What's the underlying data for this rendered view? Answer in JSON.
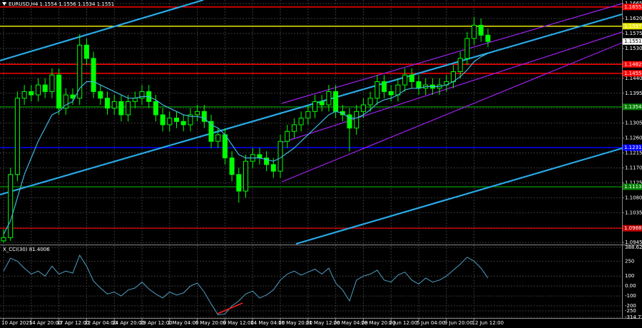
{
  "chart_data": [
    {
      "type": "candlestick",
      "title": "EURUSD,H4  1.1554 1.1556 1.1534 1.1551",
      "categories": [
        "10 Apr 2025",
        null,
        null,
        null,
        "14 Apr 20:00",
        null,
        null,
        null,
        "17 Apr 12:00",
        null,
        null,
        null,
        "22 Apr 04:00",
        null,
        null,
        null,
        "24 Apr 20:00",
        null,
        null,
        null,
        "29 Apr 12:00",
        null,
        null,
        null,
        "2 May 04:00",
        null,
        null,
        null,
        "6 May 20:00",
        null,
        null,
        null,
        "9 May 12:00",
        null,
        null,
        null,
        "14 May 04:00",
        null,
        null,
        null,
        "16 May 20:00",
        null,
        null,
        null,
        "21 May 12:00",
        null,
        null,
        null,
        "26 May 04:00",
        null,
        null,
        null,
        "28 May 20:00",
        null,
        null,
        null,
        "2 Jun 12:00",
        null,
        null,
        null,
        "5 Jun 04:00",
        null,
        null,
        null,
        "9 Jun 20:00",
        null,
        null,
        null,
        "12 Jun 12:00",
        null,
        null
      ],
      "open": [
        1.095,
        1.096,
        1.115,
        1.138,
        1.14,
        1.139,
        1.142,
        1.14,
        1.145,
        1.135,
        1.139,
        1.138,
        1.154,
        1.15,
        1.14,
        1.138,
        1.135,
        1.137,
        1.133,
        1.137,
        1.138,
        1.14,
        1.137,
        1.133,
        1.13,
        1.132,
        1.131,
        1.13,
        1.133,
        1.134,
        1.131,
        1.125,
        1.127,
        1.12,
        1.115,
        1.11,
        1.119,
        1.121,
        1.12,
        1.118,
        1.116,
        1.125,
        1.128,
        1.13,
        1.132,
        1.134,
        1.137,
        1.136,
        1.14,
        1.134,
        1.133,
        1.129,
        1.134,
        1.136,
        1.138,
        1.143,
        1.14,
        1.139,
        1.142,
        1.145,
        1.143,
        1.141,
        1.142,
        1.141,
        1.142,
        1.143,
        1.146,
        1.15,
        1.156,
        1.16,
        1.157
      ],
      "high": [
        1.0985,
        1.117,
        1.14,
        1.142,
        1.142,
        1.144,
        1.144,
        1.147,
        1.147,
        1.141,
        1.141,
        1.1573,
        1.156,
        1.152,
        1.142,
        1.14,
        1.139,
        1.139,
        1.139,
        1.14,
        1.142,
        1.142,
        1.139,
        1.135,
        1.134,
        1.134,
        1.133,
        1.135,
        1.136,
        1.136,
        1.133,
        1.129,
        1.129,
        1.122,
        1.117,
        1.121,
        1.123,
        1.123,
        1.122,
        1.12,
        1.127,
        1.13,
        1.132,
        1.134,
        1.136,
        1.139,
        1.139,
        1.142,
        1.142,
        1.136,
        1.135,
        1.136,
        1.138,
        1.14,
        1.145,
        1.145,
        1.142,
        1.144,
        1.147,
        1.147,
        1.145,
        1.144,
        1.144,
        1.144,
        1.145,
        1.148,
        1.152,
        1.158,
        1.1625,
        1.162,
        1.159
      ],
      "low": [
        1.0945,
        1.095,
        1.113,
        1.136,
        1.137,
        1.137,
        1.138,
        1.138,
        1.133,
        1.133,
        1.136,
        1.136,
        1.148,
        1.138,
        1.136,
        1.133,
        1.133,
        1.131,
        1.131,
        1.135,
        1.136,
        1.135,
        1.131,
        1.128,
        1.128,
        1.129,
        1.128,
        1.128,
        1.131,
        1.129,
        1.123,
        1.123,
        1.118,
        1.113,
        1.1065,
        1.108,
        1.117,
        1.118,
        1.116,
        1.114,
        1.114,
        1.123,
        1.126,
        1.128,
        1.13,
        1.132,
        1.134,
        1.134,
        1.132,
        1.131,
        1.122,
        1.127,
        1.132,
        1.134,
        1.136,
        1.138,
        1.137,
        1.137,
        1.14,
        1.141,
        1.139,
        1.139,
        1.139,
        1.139,
        1.14,
        1.141,
        1.144,
        1.148,
        1.154,
        1.155,
        1.1534
      ],
      "close": [
        1.096,
        1.115,
        1.138,
        1.14,
        1.139,
        1.142,
        1.14,
        1.145,
        1.135,
        1.139,
        1.138,
        1.154,
        1.15,
        1.14,
        1.138,
        1.135,
        1.137,
        1.133,
        1.137,
        1.138,
        1.14,
        1.137,
        1.133,
        1.13,
        1.132,
        1.131,
        1.13,
        1.133,
        1.134,
        1.131,
        1.125,
        1.127,
        1.12,
        1.115,
        1.11,
        1.119,
        1.121,
        1.12,
        1.118,
        1.116,
        1.125,
        1.128,
        1.13,
        1.132,
        1.134,
        1.137,
        1.136,
        1.14,
        1.134,
        1.133,
        1.129,
        1.134,
        1.136,
        1.138,
        1.143,
        1.14,
        1.139,
        1.142,
        1.145,
        1.143,
        1.141,
        1.142,
        1.141,
        1.142,
        1.143,
        1.146,
        1.15,
        1.156,
        1.16,
        1.157,
        1.1551
      ],
      "color": "#00ff00",
      "ma_values": [
        1.097,
        1.101,
        1.108,
        1.115,
        1.12,
        1.125,
        1.129,
        1.133,
        1.134,
        1.136,
        1.137,
        1.141,
        1.143,
        1.143,
        1.142,
        1.141,
        1.14,
        1.139,
        1.138,
        1.138,
        1.1385,
        1.1385,
        1.1375,
        1.136,
        1.135,
        1.134,
        1.133,
        1.1325,
        1.1325,
        1.132,
        1.13,
        1.129,
        1.127,
        1.124,
        1.121,
        1.12,
        1.12,
        1.12,
        1.1195,
        1.119,
        1.12,
        1.1215,
        1.123,
        1.125,
        1.127,
        1.129,
        1.131,
        1.133,
        1.134,
        1.1335,
        1.132,
        1.132,
        1.133,
        1.1345,
        1.1365,
        1.1375,
        1.138,
        1.139,
        1.1405,
        1.141,
        1.141,
        1.1415,
        1.1415,
        1.1415,
        1.142,
        1.143,
        1.1445,
        1.1465,
        1.149,
        1.1505,
        1.1515
      ],
      "ma_color": "#3fb6e0",
      "levels": [
        {
          "value": 1.1655,
          "color": "#ff0000"
        },
        {
          "value": 1.1597,
          "color": "#e6e600"
        },
        {
          "value": 1.1482,
          "color": "#ff0000"
        },
        {
          "value": 1.1455,
          "color": "#ff0000"
        },
        {
          "value": 1.1354,
          "color": "#008000"
        },
        {
          "value": 1.1231,
          "color": "#0000ff"
        },
        {
          "value": 1.1113,
          "color": "#008000"
        },
        {
          "value": 1.0988,
          "color": "#c00000"
        }
      ],
      "current_price": 1.1551,
      "ylim": [
        1.0941,
        1.1676
      ],
      "yticks": [
        1.1665,
        {
          "value": 1.162,
          "label": "1.1620"
        },
        1.1575,
        {
          "value": 1.153,
          "label": "1.1530"
        },
        1.1485,
        {
          "value": 1.144,
          "label": "1.1440"
        },
        1.1395,
        {
          "value": 1.135,
          "label": "1.1350"
        },
        1.1305,
        {
          "value": 1.126,
          "label": "1.1260"
        },
        1.1215,
        {
          "value": 1.117,
          "label": "1.1170"
        },
        1.1125,
        {
          "value": 1.108,
          "label": "1.1080"
        },
        1.1035,
        {
          "value": 1.099,
          "label": "1.0990"
        },
        1.0945
      ],
      "grid": true
    },
    {
      "type": "line",
      "title": "X_CCI(30) 81.4006",
      "values": [
        150,
        280,
        250,
        180,
        120,
        150,
        100,
        200,
        120,
        150,
        130,
        310,
        200,
        50,
        -20,
        -80,
        -60,
        -100,
        -40,
        -20,
        40,
        -30,
        -80,
        -120,
        -60,
        -90,
        -70,
        0,
        30,
        -60,
        -180,
        -290,
        -280,
        -200,
        -150,
        -80,
        -50,
        -120,
        -90,
        -40,
        60,
        120,
        150,
        110,
        140,
        170,
        120,
        180,
        30,
        -40,
        -150,
        60,
        100,
        120,
        160,
        60,
        40,
        110,
        140,
        60,
        20,
        80,
        40,
        60,
        100,
        160,
        220,
        290,
        250,
        180,
        81.4006
      ],
      "color": "#4f9fc4",
      "ylim": [
        -314.734,
        388.6237
      ],
      "yticks": [
        388.6237,
        250,
        100,
        {
          "value": 0,
          "label": "0.00"
        },
        -100,
        -200,
        -250,
        -314.734
      ],
      "grid": true
    }
  ]
}
